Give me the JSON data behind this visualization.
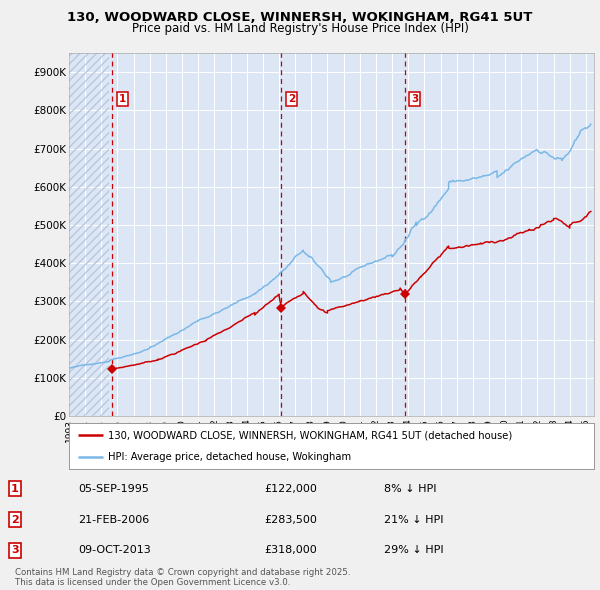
{
  "title1": "130, WOODWARD CLOSE, WINNERSH, WOKINGHAM, RG41 5UT",
  "title2": "Price paid vs. HM Land Registry's House Price Index (HPI)",
  "legend_line1": "130, WOODWARD CLOSE, WINNERSH, WOKINGHAM, RG41 5UT (detached house)",
  "legend_line2": "HPI: Average price, detached house, Wokingham",
  "purchases": [
    {
      "label": "1",
      "date_str": "05-SEP-1995",
      "date_num": 1995.68,
      "price": 122000,
      "hpi_text": "8% ↓ HPI"
    },
    {
      "label": "2",
      "date_str": "21-FEB-2006",
      "date_num": 2006.14,
      "price": 283500,
      "hpi_text": "21% ↓ HPI"
    },
    {
      "label": "3",
      "date_str": "09-OCT-2013",
      "date_num": 2013.77,
      "price": 318000,
      "hpi_text": "29% ↓ HPI"
    }
  ],
  "bg_color": "#f0f0f0",
  "plot_bg_color": "#dce6f5",
  "hatch_color": "#b8c8dc",
  "grid_color": "#ffffff",
  "red_line_color": "#cc0000",
  "blue_line_color": "#7ab8e8",
  "dashed_line_color": "#cc0000",
  "ylim": [
    0,
    950000
  ],
  "ytick_values": [
    0,
    100000,
    200000,
    300000,
    400000,
    500000,
    600000,
    700000,
    800000,
    900000
  ],
  "ytick_labels": [
    "£0",
    "£100K",
    "£200K",
    "£300K",
    "£400K",
    "£500K",
    "£600K",
    "£700K",
    "£800K",
    "£900K"
  ],
  "footnote": "Contains HM Land Registry data © Crown copyright and database right 2025.\nThis data is licensed under the Open Government Licence v3.0.",
  "hatch_end_year": 1995.5,
  "xlim_start": 1993.0,
  "xlim_end": 2025.5
}
